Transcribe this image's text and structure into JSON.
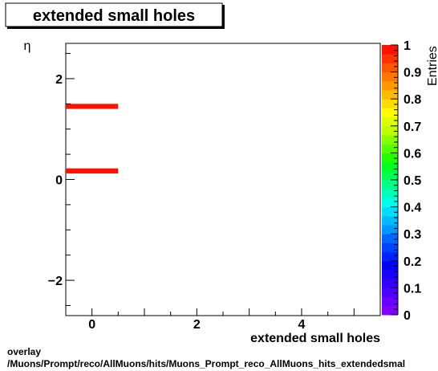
{
  "title": "extended small holes",
  "footer": {
    "line1": "overlay",
    "line2": "/Muons/Prompt/reco/AllMuons/hits/Muons_Prompt_reco_AllMuons_hits_extendedsmal"
  },
  "chart_data": {
    "type": "heatmap",
    "title": "extended small holes",
    "xlabel": "extended small holes",
    "ylabel": "η",
    "xlim": [
      -0.5,
      5.5
    ],
    "ylim": [
      -2.7,
      2.7
    ],
    "xticks": [
      0,
      2,
      4
    ],
    "xtick_labels": [
      "0",
      "2",
      "4"
    ],
    "yticks": [
      -2,
      0,
      2
    ],
    "ytick_labels": [
      "−2",
      "0",
      "2"
    ],
    "cells": [
      {
        "x0": -0.5,
        "x1": 0.5,
        "y0": 1.4,
        "y1": 1.5,
        "value": 1
      },
      {
        "x0": -0.5,
        "x1": 0.5,
        "y0": 0.12,
        "y1": 0.22,
        "value": 1
      }
    ],
    "colorbar": {
      "label": "Entries",
      "range": [
        0,
        1
      ],
      "ticks": [
        0,
        0.1,
        0.2,
        0.3,
        0.4,
        0.5,
        0.6,
        0.7,
        0.8,
        0.9,
        1
      ],
      "tick_labels": [
        "0",
        "0.1",
        "0.2",
        "0.3",
        "0.4",
        "0.5",
        "0.6",
        "0.7",
        "0.8",
        "0.9",
        "1"
      ],
      "colors": [
        "#7f00ff",
        "#6a00ff",
        "#4d00ff",
        "#3300ff",
        "#1a00ff",
        "#0000ff",
        "#0022ff",
        "#0044ff",
        "#0066ff",
        "#0099ff",
        "#00bbff",
        "#00ddff",
        "#00ffee",
        "#00ffbb",
        "#00ff88",
        "#00ff55",
        "#00ff22",
        "#22ff00",
        "#55ff00",
        "#88ff00",
        "#bbff00",
        "#ddff00",
        "#ffff00",
        "#ffdd00",
        "#ffbb00",
        "#ff9900",
        "#ff7700",
        "#ff5500",
        "#ff3300",
        "#ff1100"
      ]
    },
    "grid": false
  }
}
